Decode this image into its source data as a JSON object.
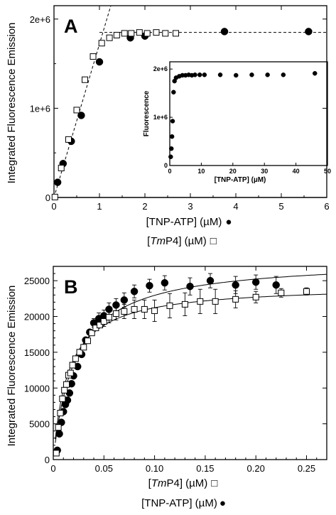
{
  "chart_data": [
    {
      "panel": "A",
      "type": "scatter",
      "panel_label": "A",
      "ylabel": "Integrated Fluorescence Emission",
      "xlabel_line1": {
        "prefix": "[TNP-ATP] (µM)",
        "marker": "●"
      },
      "xlabel_line2": {
        "open": "[",
        "italic": "Tm",
        "rest": "P4] (µM)",
        "marker": "□"
      },
      "xlim": [
        0,
        6
      ],
      "ylim": [
        0,
        2150000
      ],
      "x_ticks": [
        "0",
        "1",
        "2",
        "3",
        "4",
        "5",
        "6"
      ],
      "y_ticks": [
        "0",
        "1e+6",
        "2e+6"
      ],
      "series": [
        {
          "marker": "filled-circle",
          "x": [
            0.08,
            0.2,
            0.38,
            0.6,
            1.0,
            1.68,
            2.0,
            3.75,
            5.6
          ],
          "y": [
            170000,
            380000,
            630000,
            920000,
            1520000,
            1790000,
            1810000,
            1860000,
            1860000
          ]
        },
        {
          "marker": "open-square",
          "x": [
            0.02,
            0.16,
            0.32,
            0.5,
            0.68,
            0.86,
            1.05,
            1.22,
            1.38,
            1.55,
            1.7,
            1.88,
            2.05,
            2.25,
            2.45,
            2.68
          ],
          "y": [
            5000,
            330000,
            650000,
            980000,
            1320000,
            1580000,
            1730000,
            1790000,
            1820000,
            1840000,
            1840000,
            1850000,
            1840000,
            1850000,
            1840000,
            1840000
          ]
        }
      ],
      "fit_lines": [
        {
          "style": "dashed",
          "x": [
            0,
            1.25
          ],
          "y": [
            0,
            2150000
          ]
        },
        {
          "style": "dashed",
          "x": [
            1.0,
            6.0
          ],
          "y": [
            1850000,
            1850000
          ]
        }
      ],
      "inset": {
        "type": "scatter",
        "ylabel": "Fluorescence",
        "xlabel": "[TNP-ATP] (µM)",
        "xlim": [
          0,
          50
        ],
        "ylim": [
          0,
          2150000
        ],
        "x_ticks": [
          "0",
          "10",
          "20",
          "30",
          "40",
          "50"
        ],
        "y_ticks": [
          "0",
          "1e+6",
          "2e+6"
        ],
        "x": [
          0.3,
          0.5,
          0.7,
          0.9,
          1.2,
          1.5,
          2.0,
          3.0,
          4.0,
          5.0,
          6.0,
          7.0,
          8.0,
          9.5,
          11.0,
          16.0,
          21.0,
          26.0,
          31.0,
          36.0,
          46.0
        ],
        "y": [
          180000,
          350000,
          600000,
          920000,
          1520000,
          1750000,
          1820000,
          1850000,
          1870000,
          1870000,
          1880000,
          1870000,
          1880000,
          1880000,
          1880000,
          1880000,
          1870000,
          1880000,
          1880000,
          1880000,
          1910000
        ]
      }
    },
    {
      "panel": "B",
      "type": "scatter",
      "panel_label": "B",
      "ylabel": "Integrated Fluorescence Emission",
      "xlabel_line1": {
        "open": "[",
        "italic": "Tm",
        "rest": "P4] (µM)",
        "marker": "□"
      },
      "xlabel_line2": {
        "prefix": "[TNP-ATP] (µM)",
        "marker": "●"
      },
      "xlim": [
        0,
        0.27
      ],
      "ylim": [
        0,
        27000
      ],
      "x_ticks": [
        "0",
        "0.05",
        "0.10",
        "0.15",
        "0.20",
        "0.25"
      ],
      "x_tick_values": [
        0,
        0.05,
        0.1,
        0.15,
        0.2,
        0.25
      ],
      "y_ticks": [
        "0",
        "5000",
        "10000",
        "15000",
        "20000",
        "25000"
      ],
      "y_tick_values": [
        0,
        5000,
        10000,
        15000,
        20000,
        25000
      ],
      "series": [
        {
          "marker": "filled-circle",
          "x": [
            0.004,
            0.006,
            0.008,
            0.01,
            0.012,
            0.014,
            0.016,
            0.018,
            0.02,
            0.024,
            0.028,
            0.032,
            0.036,
            0.04,
            0.045,
            0.05,
            0.055,
            0.062,
            0.07,
            0.08,
            0.095,
            0.11,
            0.135,
            0.155,
            0.18,
            0.2,
            0.22
          ],
          "y": [
            1300,
            3600,
            5200,
            6700,
            7700,
            8300,
            9300,
            10600,
            11700,
            13000,
            14700,
            16700,
            17800,
            19100,
            19700,
            20100,
            21000,
            21600,
            22300,
            23500,
            24300,
            24700,
            24200,
            25000,
            24400,
            24800,
            24400
          ],
          "err": [
            0,
            0,
            0,
            0,
            0,
            0,
            0,
            0,
            0,
            0,
            0,
            0,
            0,
            600,
            800,
            800,
            900,
            900,
            1000,
            900,
            900,
            1000,
            1200,
            1000,
            1200,
            1000,
            1200
          ]
        },
        {
          "marker": "open-square",
          "x": [
            0.003,
            0.005,
            0.007,
            0.009,
            0.011,
            0.013,
            0.015,
            0.017,
            0.019,
            0.022,
            0.026,
            0.03,
            0.034,
            0.038,
            0.042,
            0.046,
            0.05,
            0.055,
            0.062,
            0.07,
            0.08,
            0.09,
            0.1,
            0.115,
            0.13,
            0.145,
            0.16,
            0.18,
            0.2,
            0.225,
            0.25
          ],
          "y": [
            900,
            4500,
            6500,
            8500,
            9700,
            10500,
            11800,
            12100,
            13200,
            14100,
            15000,
            15700,
            16600,
            17700,
            18400,
            18800,
            19300,
            19900,
            20400,
            20700,
            21000,
            21000,
            20800,
            21500,
            21700,
            22100,
            22100,
            22400,
            22700,
            23300,
            23500
          ],
          "err": [
            0,
            0,
            0,
            0,
            0,
            0,
            0,
            0,
            0,
            0,
            0,
            0,
            0,
            0,
            0,
            0,
            700,
            800,
            900,
            1000,
            1300,
            1300,
            1500,
            1700,
            1600,
            1700,
            1700,
            1200,
            800,
            600,
            500
          ]
        }
      ],
      "fit_lines": [
        {
          "style": "solid",
          "model": "hyperbola",
          "ymax": 28000,
          "k": 0.022
        },
        {
          "style": "solid",
          "model": "hyperbola",
          "ymax": 24400,
          "k": 0.015
        }
      ]
    }
  ]
}
